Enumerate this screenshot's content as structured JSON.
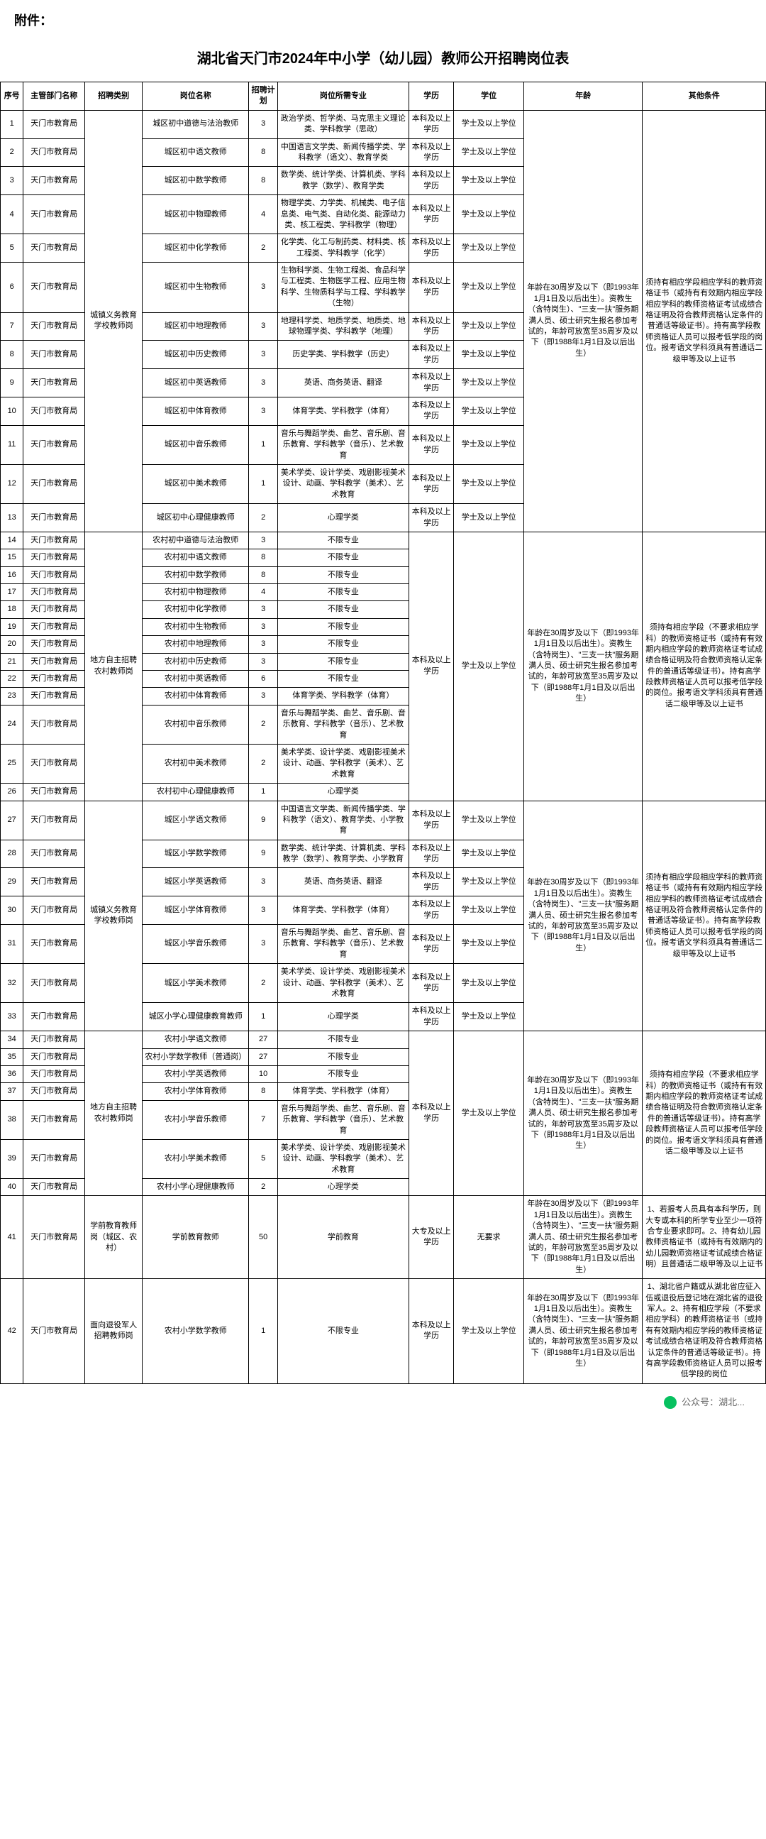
{
  "attachment_label": "附件：",
  "title": "湖北省天门市2024年中小学（幼儿园）教师公开招聘岗位表",
  "headers": {
    "seq": "序号",
    "dept": "主管部门名称",
    "category": "招聘类别",
    "position": "岗位名称",
    "plan": "招聘计划",
    "major": "岗位所需专业",
    "education": "学历",
    "degree": "学位",
    "age": "年龄",
    "other": "其他条件"
  },
  "dept_name": "天门市教育局",
  "edu_bachelor": "本科及以上学历",
  "edu_college": "大专及以上学历",
  "degree_bachelor": "学士及以上学位",
  "degree_none": "无要求",
  "no_limit": "不限专业",
  "cat1": "城镇义务教育学校教师岗",
  "cat2": "地方自主招聘农村教师岗",
  "cat3": "学前教育教师岗（城区、农村）",
  "cat4": "面向退役军人招聘教师岗",
  "age_text1": "年龄在30周岁及以下（即1993年1月1日及以后出生）。资教生（含特岗生）、\"三支一扶\"服务期满人员、硕士研究生报名参加考试的，年龄可放宽至35周岁及以下（即1988年1月1日及以后出生）",
  "other_text1": "须持有相应学段相应学科的教师资格证书（或持有有效期内相应学段相应学科的教师资格证考试成绩合格证明及符合教师资格认定条件的普通话等级证书）。持有高学段教师资格证人员可以报考低学段的岗位。报考语文学科须具有普通话二级甲等及以上证书",
  "other_text2": "须持有相应学段（不要求相应学科）的教师资格证书（或持有有效期内相应学段的教师资格证考试成绩合格证明及符合教师资格认定条件的普通话等级证书）。持有高学段教师资格证人员可以报考低学段的岗位。报考语文学科须具有普通话二级甲等及以上证书",
  "other_text3": "1、若报考人员具有本科学历，则大专或本科的所学专业至少一项符合专业要求即可。2、持有幼儿园教师资格证书（或持有有效期内的幼儿园教师资格证考试成绩合格证明）且普通话二级甲等及以上证书",
  "other_text4": "1、湖北省户籍或从湖北省应征入伍或退役后登记地在湖北省的退役军人。2、持有相应学段（不要求相应学科）的教师资格证书（或持有有效期内相应学段的教师资格证考试成绩合格证明及符合教师资格认定条件的普通话等级证书）。持有高学段教师资格证人员可以报考低学段的岗位",
  "rows": [
    {
      "seq": "1",
      "pos": "城区初中道德与法治教师",
      "plan": "3",
      "major": "政治学类、哲学类、马克思主义理论类、学科教学（思政）"
    },
    {
      "seq": "2",
      "pos": "城区初中语文教师",
      "plan": "8",
      "major": "中国语言文学类、新闻传播学类、学科教学（语文）、教育学类"
    },
    {
      "seq": "3",
      "pos": "城区初中数学教师",
      "plan": "8",
      "major": "数学类、统计学类、计算机类、学科教学（数学）、教育学类"
    },
    {
      "seq": "4",
      "pos": "城区初中物理教师",
      "plan": "4",
      "major": "物理学类、力学类、机械类、电子信息类、电气类、自动化类、能源动力类、核工程类、学科教学（物理）"
    },
    {
      "seq": "5",
      "pos": "城区初中化学教师",
      "plan": "2",
      "major": "化学类、化工与制药类、材料类、核工程类、学科教学（化学）"
    },
    {
      "seq": "6",
      "pos": "城区初中生物教师",
      "plan": "3",
      "major": "生物科学类、生物工程类、食品科学与工程类、生物医学工程、应用生物科学、生物质科学与工程、学科教学（生物）"
    },
    {
      "seq": "7",
      "pos": "城区初中地理教师",
      "plan": "3",
      "major": "地理科学类、地质学类、地质类、地球物理学类、学科教学（地理）"
    },
    {
      "seq": "8",
      "pos": "城区初中历史教师",
      "plan": "3",
      "major": "历史学类、学科教学（历史）"
    },
    {
      "seq": "9",
      "pos": "城区初中英语教师",
      "plan": "3",
      "major": "英语、商务英语、翻译"
    },
    {
      "seq": "10",
      "pos": "城区初中体育教师",
      "plan": "3",
      "major": "体育学类、学科教学（体育）"
    },
    {
      "seq": "11",
      "pos": "城区初中音乐教师",
      "plan": "1",
      "major": "音乐与舞蹈学类、曲艺、音乐剧、音乐教育、学科教学（音乐）、艺术教育"
    },
    {
      "seq": "12",
      "pos": "城区初中美术教师",
      "plan": "1",
      "major": "美术学类、设计学类、戏剧影视美术设计、动画、学科教学（美术）、艺术教育"
    },
    {
      "seq": "13",
      "pos": "城区初中心理健康教师",
      "plan": "2",
      "major": "心理学类"
    },
    {
      "seq": "14",
      "pos": "农村初中道德与法治教师",
      "plan": "3"
    },
    {
      "seq": "15",
      "pos": "农村初中语文教师",
      "plan": "8"
    },
    {
      "seq": "16",
      "pos": "农村初中数学教师",
      "plan": "8"
    },
    {
      "seq": "17",
      "pos": "农村初中物理教师",
      "plan": "4"
    },
    {
      "seq": "18",
      "pos": "农村初中化学教师",
      "plan": "3"
    },
    {
      "seq": "19",
      "pos": "农村初中生物教师",
      "plan": "3"
    },
    {
      "seq": "20",
      "pos": "农村初中地理教师",
      "plan": "3"
    },
    {
      "seq": "21",
      "pos": "农村初中历史教师",
      "plan": "3"
    },
    {
      "seq": "22",
      "pos": "农村初中英语教师",
      "plan": "6"
    },
    {
      "seq": "23",
      "pos": "农村初中体育教师",
      "plan": "3",
      "major": "体育学类、学科教学（体育）"
    },
    {
      "seq": "24",
      "pos": "农村初中音乐教师",
      "plan": "2",
      "major": "音乐与舞蹈学类、曲艺、音乐剧、音乐教育、学科教学（音乐）、艺术教育"
    },
    {
      "seq": "25",
      "pos": "农村初中美术教师",
      "plan": "2",
      "major": "美术学类、设计学类、戏剧影视美术设计、动画、学科教学（美术）、艺术教育"
    },
    {
      "seq": "26",
      "pos": "农村初中心理健康教师",
      "plan": "1",
      "major": "心理学类"
    },
    {
      "seq": "27",
      "pos": "城区小学语文教师",
      "plan": "9",
      "major": "中国语言文学类、新闻传播学类、学科教学（语文）、教育学类、小学教育"
    },
    {
      "seq": "28",
      "pos": "城区小学数学教师",
      "plan": "9",
      "major": "数学类、统计学类、计算机类、学科教学（数学）、教育学类、小学教育"
    },
    {
      "seq": "29",
      "pos": "城区小学英语教师",
      "plan": "3",
      "major": "英语、商务英语、翻译"
    },
    {
      "seq": "30",
      "pos": "城区小学体育教师",
      "plan": "3",
      "major": "体育学类、学科教学（体育）"
    },
    {
      "seq": "31",
      "pos": "城区小学音乐教师",
      "plan": "3",
      "major": "音乐与舞蹈学类、曲艺、音乐剧、音乐教育、学科教学（音乐）、艺术教育"
    },
    {
      "seq": "32",
      "pos": "城区小学美术教师",
      "plan": "2",
      "major": "美术学类、设计学类、戏剧影视美术设计、动画、学科教学（美术）、艺术教育"
    },
    {
      "seq": "33",
      "pos": "城区小学心理健康教育教师",
      "plan": "1",
      "major": "心理学类"
    },
    {
      "seq": "34",
      "pos": "农村小学语文教师",
      "plan": "27"
    },
    {
      "seq": "35",
      "pos": "农村小学数学教师（普通岗）",
      "plan": "27"
    },
    {
      "seq": "36",
      "pos": "农村小学英语教师",
      "plan": "10"
    },
    {
      "seq": "37",
      "pos": "农村小学体育教师",
      "plan": "8",
      "major": "体育学类、学科教学（体育）"
    },
    {
      "seq": "38",
      "pos": "农村小学音乐教师",
      "plan": "7",
      "major": "音乐与舞蹈学类、曲艺、音乐剧、音乐教育、学科教学（音乐）、艺术教育"
    },
    {
      "seq": "39",
      "pos": "农村小学美术教师",
      "plan": "5",
      "major": "美术学类、设计学类、戏剧影视美术设计、动画、学科教学（美术）、艺术教育"
    },
    {
      "seq": "40",
      "pos": "农村小学心理健康教师",
      "plan": "2",
      "major": "心理学类"
    },
    {
      "seq": "41",
      "pos": "学前教育教师",
      "plan": "50",
      "major": "学前教育"
    },
    {
      "seq": "42",
      "pos": "农村小学数学教师",
      "plan": "1",
      "major": "不限专业"
    }
  ],
  "footer_text": "公众号：湖北... "
}
